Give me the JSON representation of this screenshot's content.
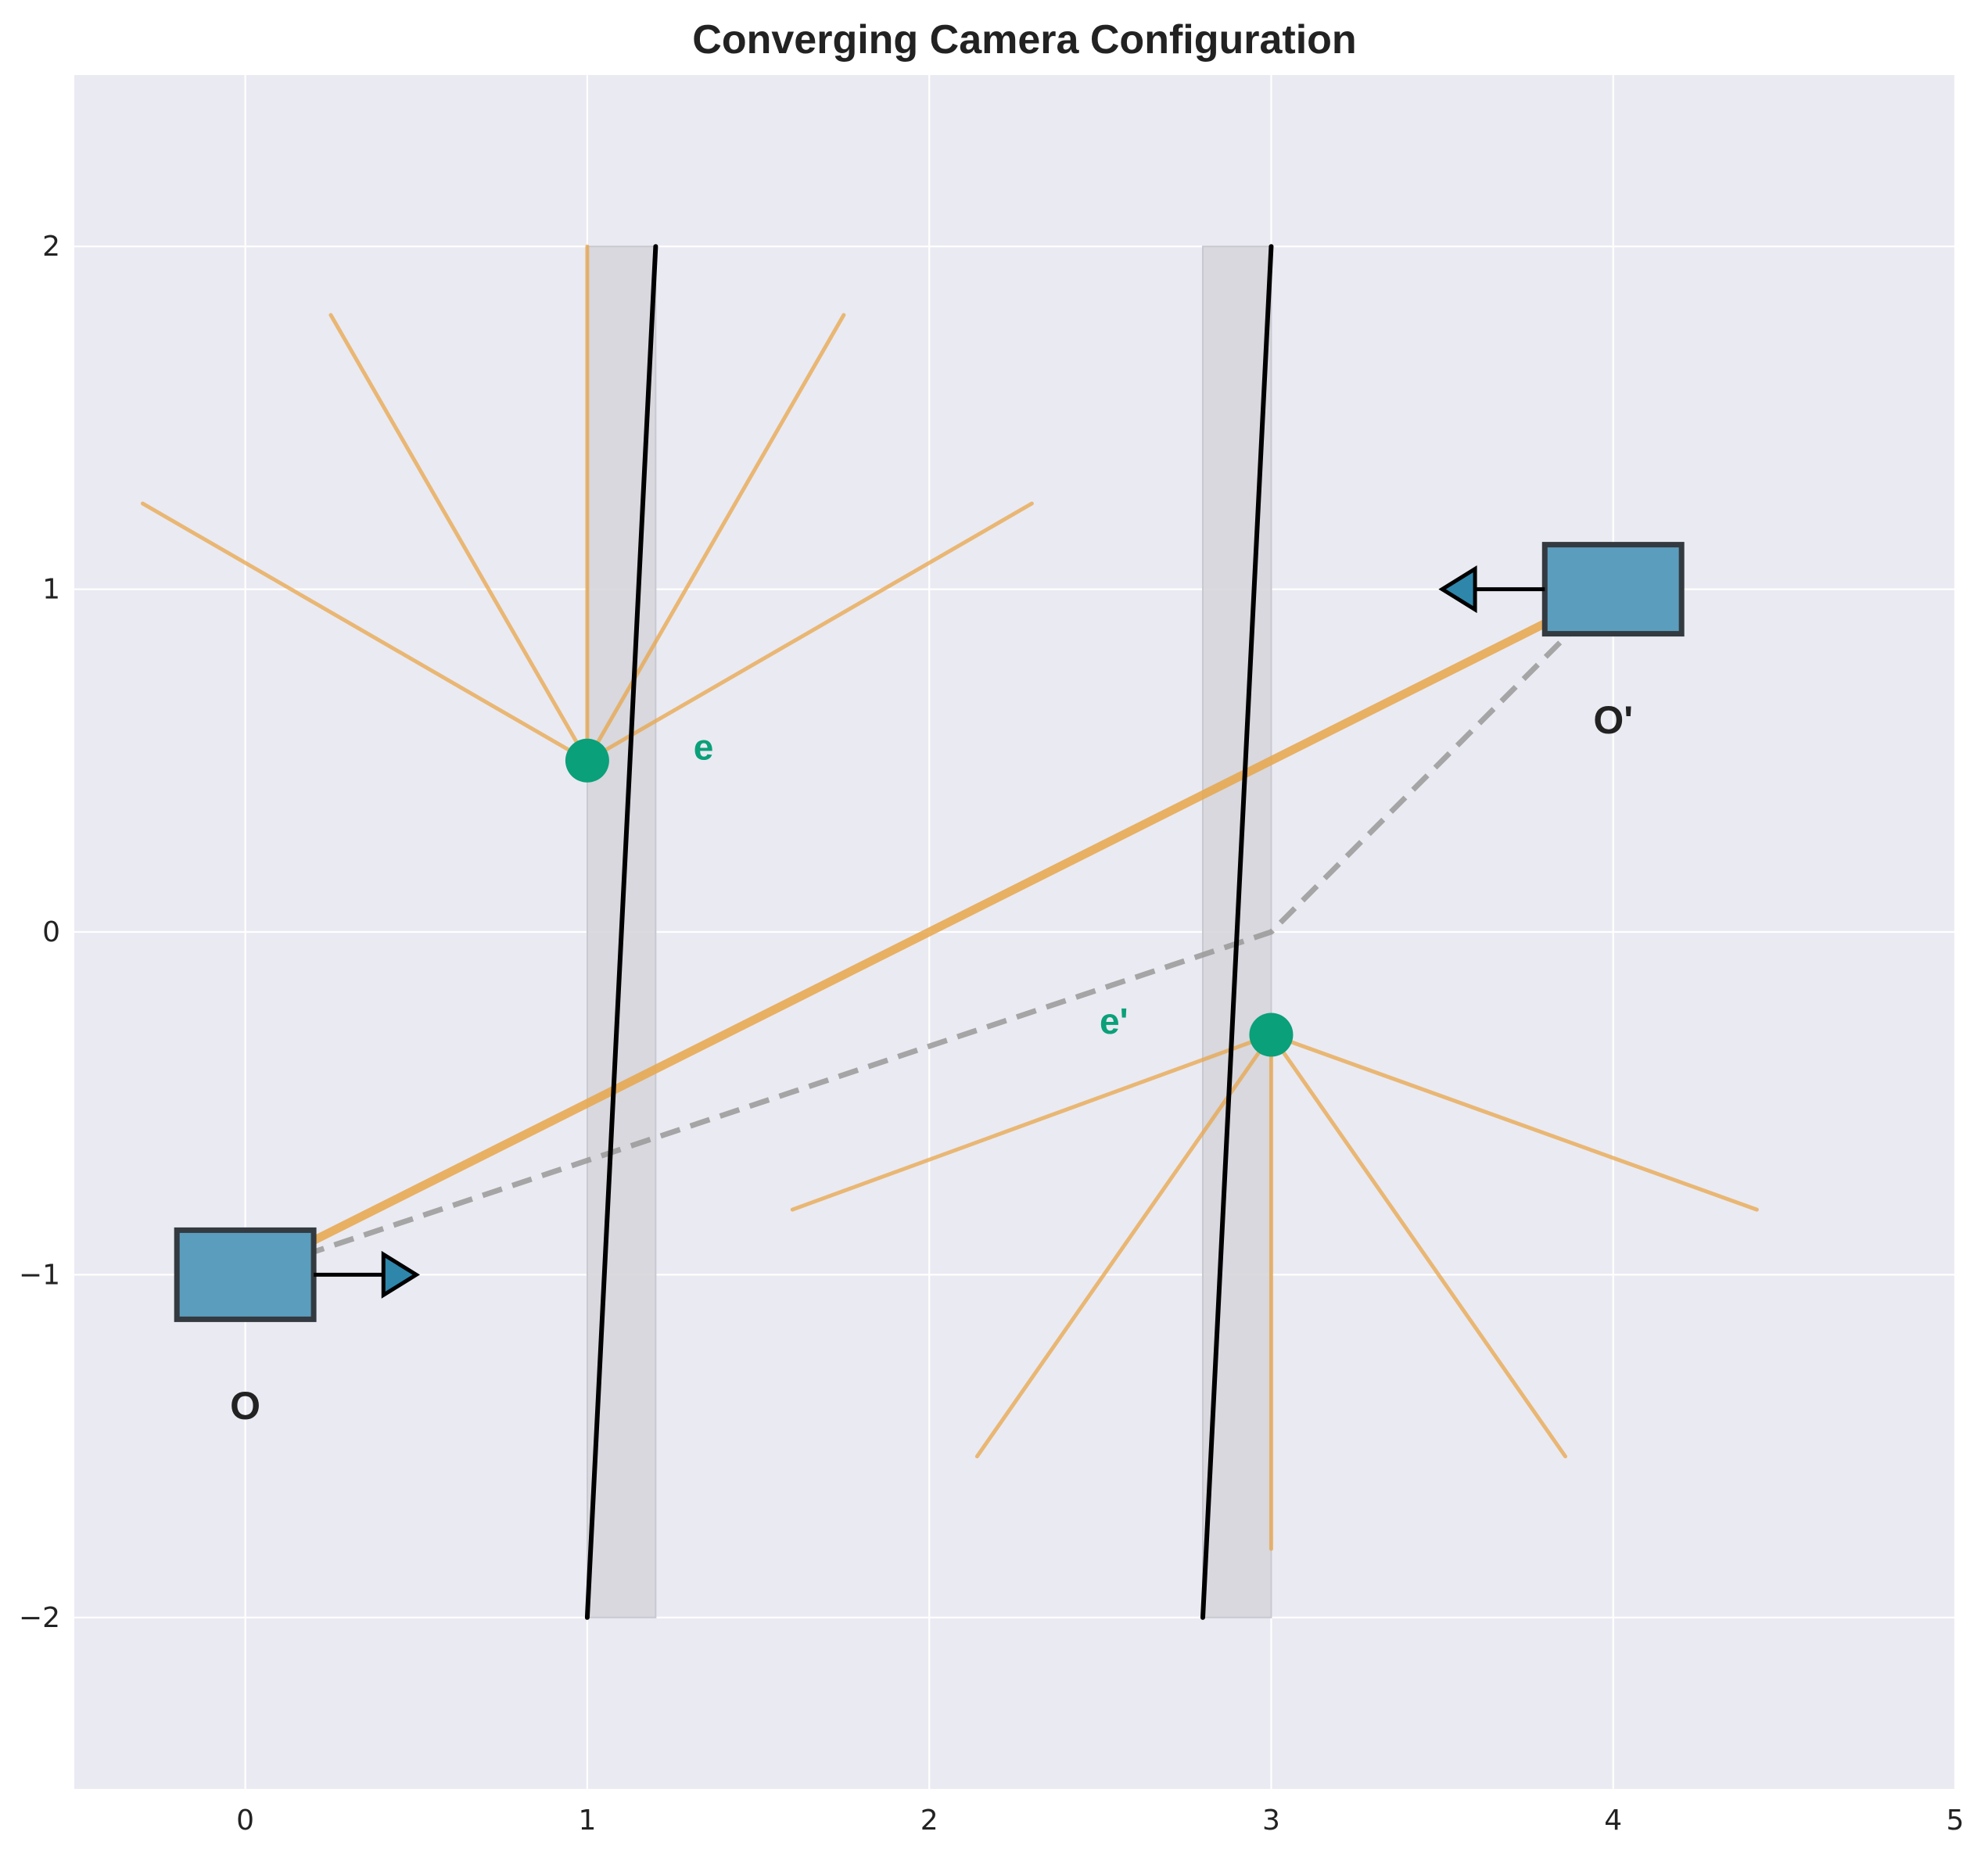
{
  "chart_data": {
    "type": "diagram",
    "title": "Converging Camera Configuration",
    "xlim": [
      -0.5,
      5
    ],
    "ylim": [
      -2.5,
      2.5
    ],
    "x_ticks": [
      0,
      1,
      2,
      3,
      4,
      5
    ],
    "y_ticks": [
      -2,
      -1,
      0,
      1,
      2
    ],
    "grid": true,
    "colors": {
      "background": "#eaeaf2",
      "grid": "#ffffff",
      "image_plane": "#d6d6dc",
      "ray": "#e8a64a",
      "epipole": "#0aa07a",
      "camera_fill": "#5b9dbd",
      "camera_edge": "#333a40",
      "baseline": "#999999",
      "plane_line": "#000000"
    },
    "image_planes": [
      {
        "shade_x": [
          1.0,
          1.2
        ],
        "y": [
          -2,
          2
        ],
        "line_from": [
          1.0,
          -2
        ],
        "line_to": [
          1.2,
          2
        ]
      },
      {
        "shade_x": [
          2.8,
          3.0
        ],
        "y": [
          -2,
          2
        ],
        "line_from": [
          2.8,
          -2
        ],
        "line_to": [
          3.0,
          2
        ]
      }
    ],
    "cameras": [
      {
        "label": "O",
        "center": [
          0,
          -1
        ],
        "box_x": [
          -0.2,
          0.2
        ],
        "box_y": [
          -1.13,
          -0.87
        ],
        "arrow_from": [
          0.2,
          -1
        ],
        "arrow_to": [
          0.5,
          -1
        ],
        "label_pos": [
          0,
          -1.38
        ]
      },
      {
        "label": "O'",
        "center": [
          4,
          1
        ],
        "box_x": [
          3.8,
          4.2
        ],
        "box_y": [
          0.87,
          1.13
        ],
        "arrow_from": [
          3.8,
          1
        ],
        "arrow_to": [
          3.5,
          1
        ],
        "label_pos": [
          4,
          0.62
        ]
      }
    ],
    "epipoles": [
      {
        "label": "e",
        "x": 1.0,
        "y": 0.5,
        "label_pos": [
          1.34,
          0.54
        ]
      },
      {
        "label": "e'",
        "x": 3.0,
        "y": -0.3,
        "label_pos": [
          2.54,
          -0.26
        ]
      }
    ],
    "epipolar_rays": [
      {
        "origin": [
          1.0,
          0.5
        ],
        "ends": [
          [
            -0.3,
            1.25
          ],
          [
            0.25,
            1.8
          ],
          [
            1.0,
            2.0
          ],
          [
            1.75,
            1.8
          ],
          [
            2.3,
            1.25
          ]
        ]
      },
      {
        "origin": [
          3.0,
          -0.3
        ],
        "ends": [
          [
            1.6,
            -0.81
          ],
          [
            2.14,
            -1.53
          ],
          [
            3.0,
            -1.8
          ],
          [
            3.86,
            -1.53
          ],
          [
            4.42,
            -0.81
          ]
        ]
      }
    ],
    "camera_ray": {
      "from": [
        0,
        -1
      ],
      "to": [
        4,
        1
      ]
    },
    "baseline": {
      "points": [
        [
          0,
          -1
        ],
        [
          3.0,
          0.0
        ],
        [
          4,
          1
        ]
      ]
    }
  }
}
